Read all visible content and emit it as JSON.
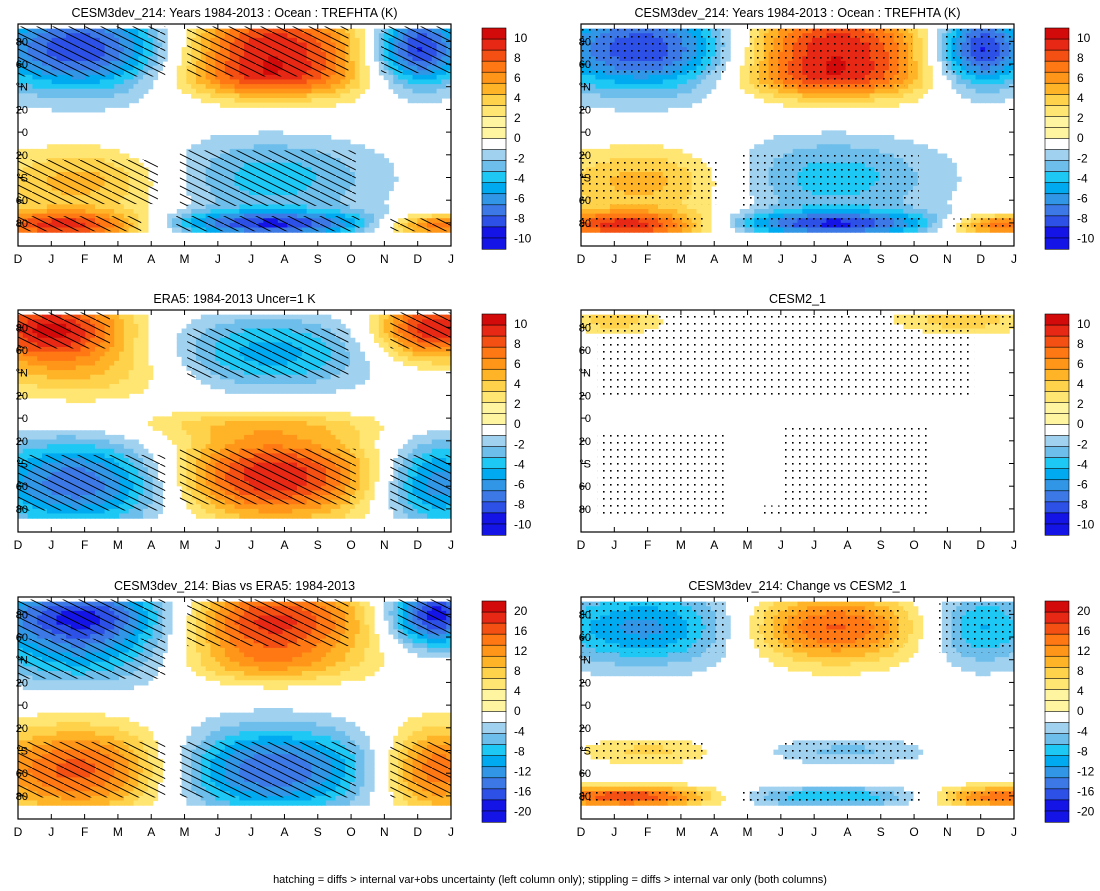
{
  "palettes": {
    "temp": [
      "#1414e6",
      "#2d50e6",
      "#3c78e6",
      "#3296e6",
      "#00aaf0",
      "#1ec8f5",
      "#6ebeeb",
      "#a0d2f0",
      "#ffffff",
      "#fff5a0",
      "#ffe673",
      "#ffd24b",
      "#ffb428",
      "#ff9619",
      "#ff7814",
      "#f55014",
      "#e62814",
      "#d20a0a"
    ]
  },
  "month_ticks": [
    "D",
    "J",
    "F",
    "M",
    "A",
    "M",
    "J",
    "J",
    "A",
    "S",
    "O",
    "N",
    "D",
    "J"
  ],
  "lat_ticks": [
    "80",
    "60",
    "°N",
    "20",
    "0",
    "20",
    "°S",
    "60",
    "80"
  ],
  "colorbars": [
    {
      "labels": [
        "10",
        "8",
        "6",
        "4",
        "2",
        "0",
        "-2",
        "-4",
        "-6",
        "-8",
        "-10"
      ]
    },
    {
      "labels": [
        "20",
        "16",
        "12",
        "8",
        "4",
        "0",
        "-4",
        "-8",
        "-12",
        "-16",
        "-20"
      ]
    }
  ],
  "panels": [
    {
      "title": "CESM3dev_214: Years 1984-2013 : Ocean : TREFHTA (K)"
    },
    {
      "title": "CESM3dev_214: Years 1984-2013 : Ocean : TREFHTA (K)"
    },
    {
      "title": "ERA5: 1984-2013 Uncer=1 K"
    },
    {
      "title": "CESM2_1"
    },
    {
      "title": "CESM3dev_214: Bias vs ERA5: 1984-2013"
    },
    {
      "title": "CESM3dev_214: Change vs CESM2_1"
    }
  ],
  "chart_data": [
    {
      "type": "heatmap",
      "title": "CESM3dev_214: Years 1984-2013 : Ocean : TREFHTA (K)",
      "x_axis": "month (Dec–Jan)",
      "y_axis": "latitude",
      "colorbar": [
        -10,
        10
      ],
      "overlay": "hatching",
      "features": [
        {
          "x": 2.0,
          "y": 70,
          "sx": 2.2,
          "sy": 25,
          "value": -9
        },
        {
          "x": 12.0,
          "y": 70,
          "sx": 1.0,
          "sy": 22,
          "value": -10
        },
        {
          "x": 7.5,
          "y": 70,
          "sx": 2.2,
          "sy": 25,
          "value": 9
        },
        {
          "x": 7.5,
          "y": 45,
          "sx": 2.0,
          "sy": 10,
          "value": 3
        },
        {
          "x": 2.0,
          "y": -38,
          "sx": 2.0,
          "sy": 20,
          "value": 4
        },
        {
          "x": 1.5,
          "y": -73,
          "sx": 2.0,
          "sy": 8,
          "value": 8
        },
        {
          "x": 12.5,
          "y": -73,
          "sx": 1.2,
          "sy": 6,
          "value": 7
        },
        {
          "x": 7.5,
          "y": -35,
          "sx": 2.4,
          "sy": 25,
          "value": -4
        },
        {
          "x": 7.5,
          "y": -72,
          "sx": 2.5,
          "sy": 7,
          "value": -8
        }
      ]
    },
    {
      "type": "heatmap",
      "title": "CESM3dev_214: Years 1984-2013 : Ocean : TREFHTA (K)",
      "x_axis": "month (Dec–Jan)",
      "y_axis": "latitude",
      "colorbar": [
        -10,
        10
      ],
      "overlay": "stippling",
      "features": [
        {
          "x": 2.0,
          "y": 70,
          "sx": 2.2,
          "sy": 25,
          "value": -9
        },
        {
          "x": 12.0,
          "y": 70,
          "sx": 1.0,
          "sy": 22,
          "value": -10
        },
        {
          "x": 7.5,
          "y": 70,
          "sx": 2.2,
          "sy": 25,
          "value": 9
        },
        {
          "x": 7.5,
          "y": 45,
          "sx": 2.0,
          "sy": 10,
          "value": 3
        },
        {
          "x": 2.0,
          "y": -38,
          "sx": 2.0,
          "sy": 20,
          "value": 4
        },
        {
          "x": 1.5,
          "y": -73,
          "sx": 2.0,
          "sy": 8,
          "value": 8
        },
        {
          "x": 12.5,
          "y": -73,
          "sx": 1.2,
          "sy": 6,
          "value": 7
        },
        {
          "x": 7.5,
          "y": -35,
          "sx": 2.4,
          "sy": 25,
          "value": -4
        },
        {
          "x": 7.5,
          "y": -72,
          "sx": 2.5,
          "sy": 7,
          "value": -8
        }
      ]
    },
    {
      "type": "heatmap",
      "title": "ERA5: 1984-2013 Uncer=1 K",
      "x_axis": "month (Dec–Jan)",
      "y_axis": "latitude",
      "colorbar": [
        -10,
        10
      ],
      "overlay": "hatching",
      "features": [
        {
          "x": 1.0,
          "y": 75,
          "sx": 1.6,
          "sy": 18,
          "value": 9
        },
        {
          "x": 12.5,
          "y": 75,
          "sx": 1.2,
          "sy": 18,
          "value": 9
        },
        {
          "x": 2.0,
          "y": 40,
          "sx": 2.2,
          "sy": 18,
          "value": 3
        },
        {
          "x": 7.5,
          "y": 55,
          "sx": 2.2,
          "sy": 22,
          "value": -5
        },
        {
          "x": 2.0,
          "y": -50,
          "sx": 2.2,
          "sy": 25,
          "value": -8
        },
        {
          "x": 12.5,
          "y": -50,
          "sx": 1.2,
          "sy": 25,
          "value": -7
        },
        {
          "x": 7.5,
          "y": -45,
          "sx": 2.4,
          "sy": 25,
          "value": 9
        },
        {
          "x": 7.0,
          "y": -3,
          "sx": 3.0,
          "sy": 8,
          "value": 2
        }
      ]
    },
    {
      "type": "heatmap",
      "title": "CESM2_1",
      "x_axis": "month (Dec–Jan)",
      "y_axis": "latitude",
      "colorbar": [
        -10,
        10
      ],
      "overlay": "stippling",
      "features": [
        {
          "x": 1.0,
          "y": 82,
          "sx": 1.0,
          "sy": 8,
          "value": 3
        },
        {
          "x": 11.5,
          "y": 82,
          "sx": 1.5,
          "sy": 8,
          "value": 3
        },
        {
          "x": 7.0,
          "y": -73,
          "sx": 1.5,
          "sy": 5,
          "value": 1
        }
      ]
    },
    {
      "type": "heatmap",
      "title": "CESM3dev_214: Bias vs ERA5: 1984-2013",
      "x_axis": "month (Dec–Jan)",
      "y_axis": "latitude",
      "colorbar": [
        -20,
        20
      ],
      "overlay": "hatching",
      "features": [
        {
          "x": 2.0,
          "y": 75,
          "sx": 2.2,
          "sy": 18,
          "value": -18
        },
        {
          "x": 12.5,
          "y": 75,
          "sx": 1.0,
          "sy": 18,
          "value": -20
        },
        {
          "x": 2.0,
          "y": 40,
          "sx": 2.2,
          "sy": 18,
          "value": -8
        },
        {
          "x": 7.5,
          "y": 70,
          "sx": 2.2,
          "sy": 22,
          "value": 17
        },
        {
          "x": 7.5,
          "y": 35,
          "sx": 2.0,
          "sy": 12,
          "value": 6
        },
        {
          "x": 2.0,
          "y": -50,
          "sx": 2.2,
          "sy": 25,
          "value": 15
        },
        {
          "x": 12.5,
          "y": -50,
          "sx": 1.2,
          "sy": 25,
          "value": 14
        },
        {
          "x": 7.5,
          "y": -50,
          "sx": 2.4,
          "sy": 25,
          "value": -16
        }
      ]
    },
    {
      "type": "heatmap",
      "title": "CESM3dev_214: Change vs CESM2_1",
      "x_axis": "month (Dec–Jan)",
      "y_axis": "latitude",
      "colorbar": [
        -20,
        20
      ],
      "overlay": "stippling",
      "features": [
        {
          "x": 2.0,
          "y": 65,
          "sx": 2.2,
          "sy": 22,
          "value": -12
        },
        {
          "x": 12.0,
          "y": 65,
          "sx": 1.2,
          "sy": 22,
          "value": -10
        },
        {
          "x": 7.5,
          "y": 65,
          "sx": 2.0,
          "sy": 20,
          "value": 14
        },
        {
          "x": 2.0,
          "y": -35,
          "sx": 1.5,
          "sy": 8,
          "value": 5
        },
        {
          "x": 8.0,
          "y": -35,
          "sx": 1.8,
          "sy": 8,
          "value": -5
        },
        {
          "x": 1.5,
          "y": -72,
          "sx": 2.0,
          "sy": 6,
          "value": 16
        },
        {
          "x": 12.5,
          "y": -72,
          "sx": 1.5,
          "sy": 6,
          "value": 14
        },
        {
          "x": 7.5,
          "y": -72,
          "sx": 2.5,
          "sy": 6,
          "value": -9
        }
      ]
    }
  ],
  "footer": {
    "caption": "hatching = diffs > internal var+obs uncertainty (left column only); stippling = diffs > internal var only (both columns)"
  }
}
